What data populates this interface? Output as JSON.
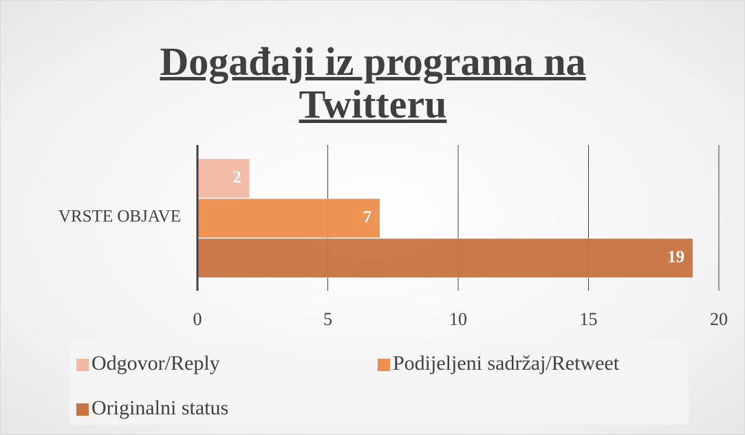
{
  "chart_data": {
    "type": "bar",
    "orientation": "horizontal",
    "title": "Događaji iz programa na Twitteru",
    "categories": [
      "VRSTE OBJAVE"
    ],
    "series": [
      {
        "name": "Odgovor/Reply",
        "color": "#f3b9a2",
        "values": [
          2
        ]
      },
      {
        "name": "Podijeljeni sadržaj/Retweet",
        "color": "#ed8f4d",
        "values": [
          7
        ]
      },
      {
        "name": "Originalni status",
        "color": "#c97341",
        "values": [
          19
        ]
      }
    ],
    "xlim": [
      0,
      20
    ],
    "xticks": [
      0,
      5,
      10,
      15,
      20
    ],
    "grid": true,
    "legend": "bottom"
  }
}
